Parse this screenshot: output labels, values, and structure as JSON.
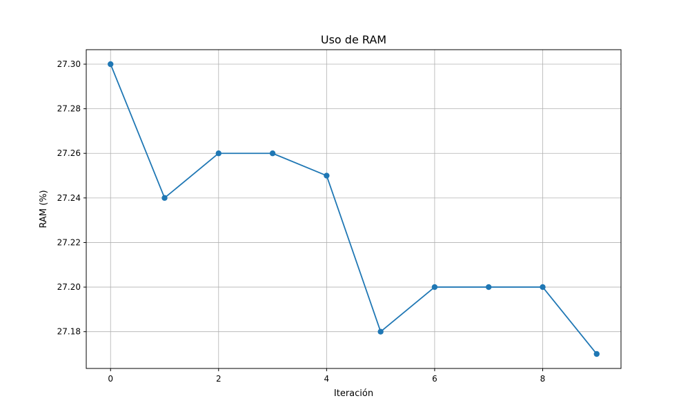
{
  "chart_data": {
    "type": "line",
    "title": "Uso de RAM",
    "xlabel": "Iteración",
    "ylabel": "RAM (%)",
    "x": [
      0,
      1,
      2,
      3,
      4,
      5,
      6,
      7,
      8,
      9
    ],
    "series": [
      {
        "values": [
          27.3,
          27.24,
          27.26,
          27.26,
          27.25,
          27.18,
          27.2,
          27.2,
          27.2,
          27.17
        ],
        "color": "#1f77b4",
        "marker": "circle"
      }
    ],
    "xlim": [
      -0.45,
      9.45
    ],
    "ylim": [
      27.1635,
      27.3065
    ],
    "xticks": [
      0,
      2,
      4,
      6,
      8
    ],
    "xtick_labels": [
      "0",
      "2",
      "4",
      "6",
      "8"
    ],
    "yticks": [
      27.18,
      27.2,
      27.22,
      27.24,
      27.26,
      27.28,
      27.3
    ],
    "ytick_labels": [
      "27.18",
      "27.20",
      "27.22",
      "27.24",
      "27.26",
      "27.28",
      "27.30"
    ],
    "grid": true,
    "legend": false
  }
}
